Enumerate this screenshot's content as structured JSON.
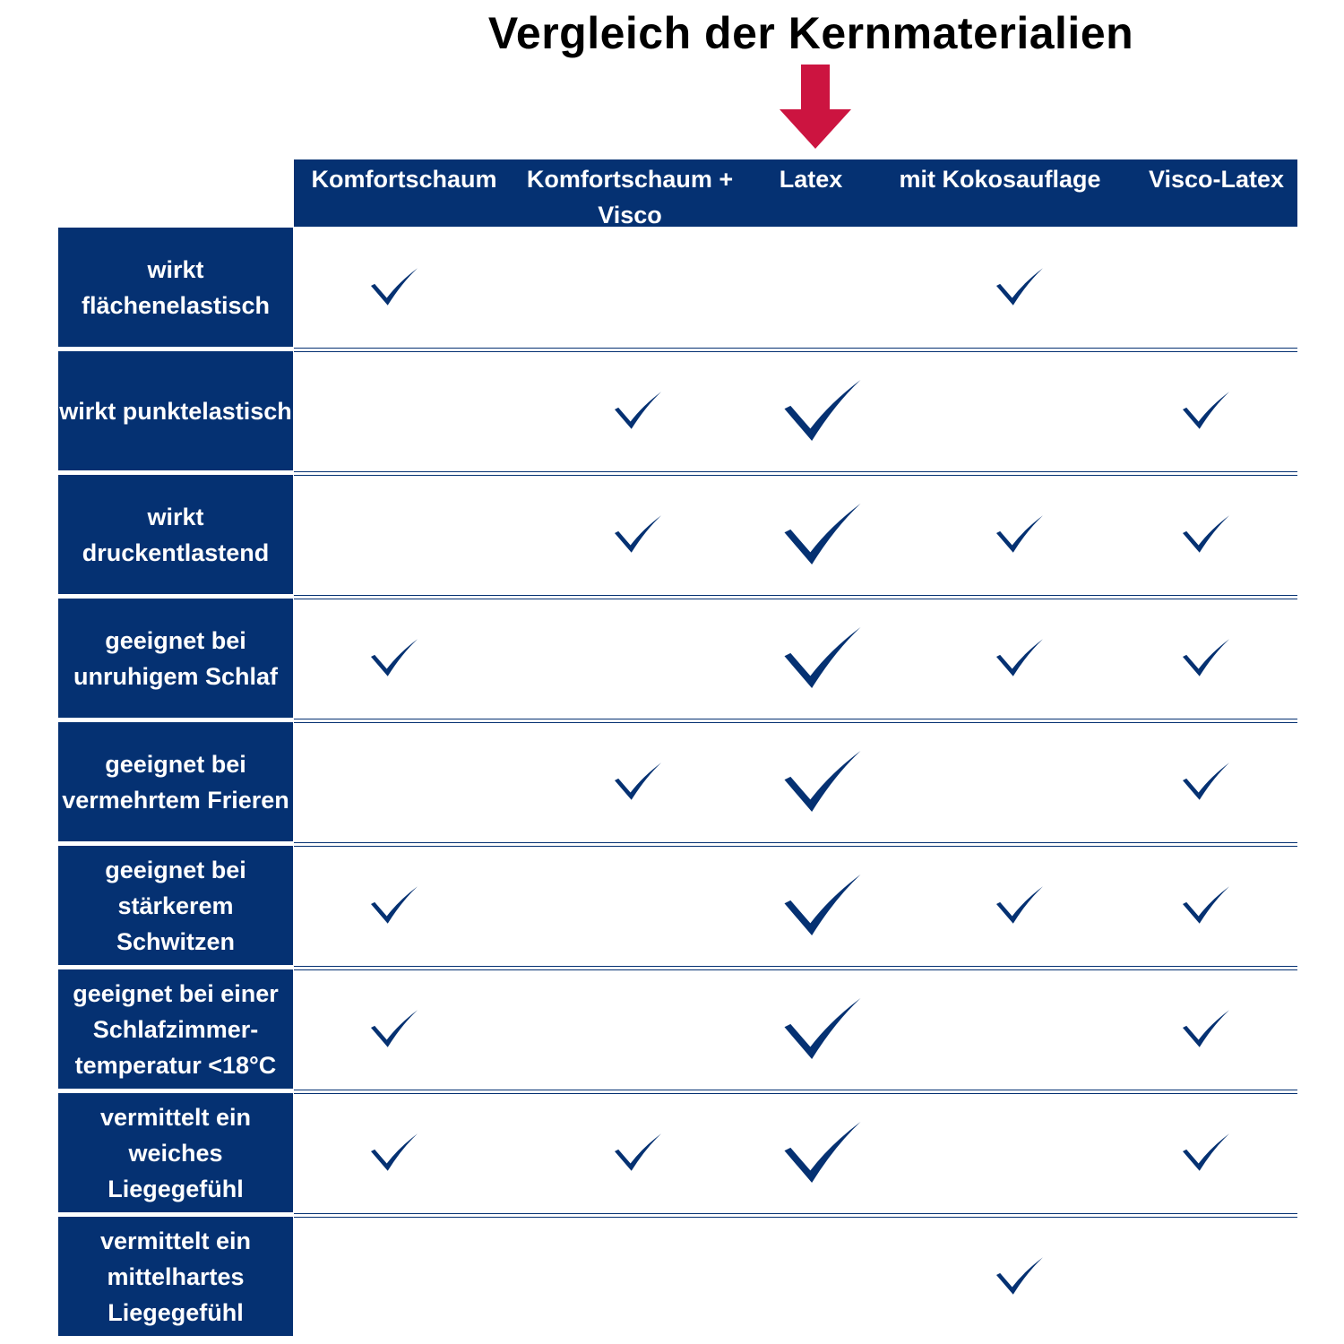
{
  "title": "Vergleich der Kernmaterialien",
  "colors": {
    "navy": "#053172",
    "arrow": "#cc1440",
    "white": "#ffffff"
  },
  "highlight_icon": "arrow-down-icon",
  "check_icon": "checkmark-icon",
  "columns": [
    {
      "label": "Komfortschaum"
    },
    {
      "label": "Komfortschaum + Visco"
    },
    {
      "label": "Latex",
      "highlighted": true
    },
    {
      "label": "mit Kokosauflage"
    },
    {
      "label": "Visco-Latex"
    }
  ],
  "rows": [
    {
      "label": "wirkt flächenelastisch",
      "checks": [
        true,
        false,
        false,
        true,
        false
      ]
    },
    {
      "label": "wirkt punktelastisch",
      "checks": [
        false,
        true,
        true,
        false,
        true
      ]
    },
    {
      "label": "wirkt druckentlastend",
      "checks": [
        false,
        true,
        true,
        true,
        true
      ]
    },
    {
      "label": "geeignet bei unruhigem Schlaf",
      "checks": [
        true,
        false,
        true,
        true,
        true
      ]
    },
    {
      "label": "geeignet bei vermehrtem Frieren",
      "checks": [
        false,
        true,
        true,
        false,
        true
      ]
    },
    {
      "label": "geeignet bei stärkerem Schwitzen",
      "checks": [
        true,
        false,
        true,
        true,
        true
      ]
    },
    {
      "label": "geeignet bei einer Schlafzimmer-temperatur <18°C",
      "checks": [
        true,
        false,
        true,
        false,
        true
      ]
    },
    {
      "label": "vermittelt ein weiches Liegegefühl",
      "checks": [
        true,
        true,
        true,
        false,
        true
      ]
    },
    {
      "label": "vermittelt ein mittelhartes Liegegefühl",
      "checks": [
        false,
        false,
        false,
        true,
        false
      ]
    }
  ]
}
